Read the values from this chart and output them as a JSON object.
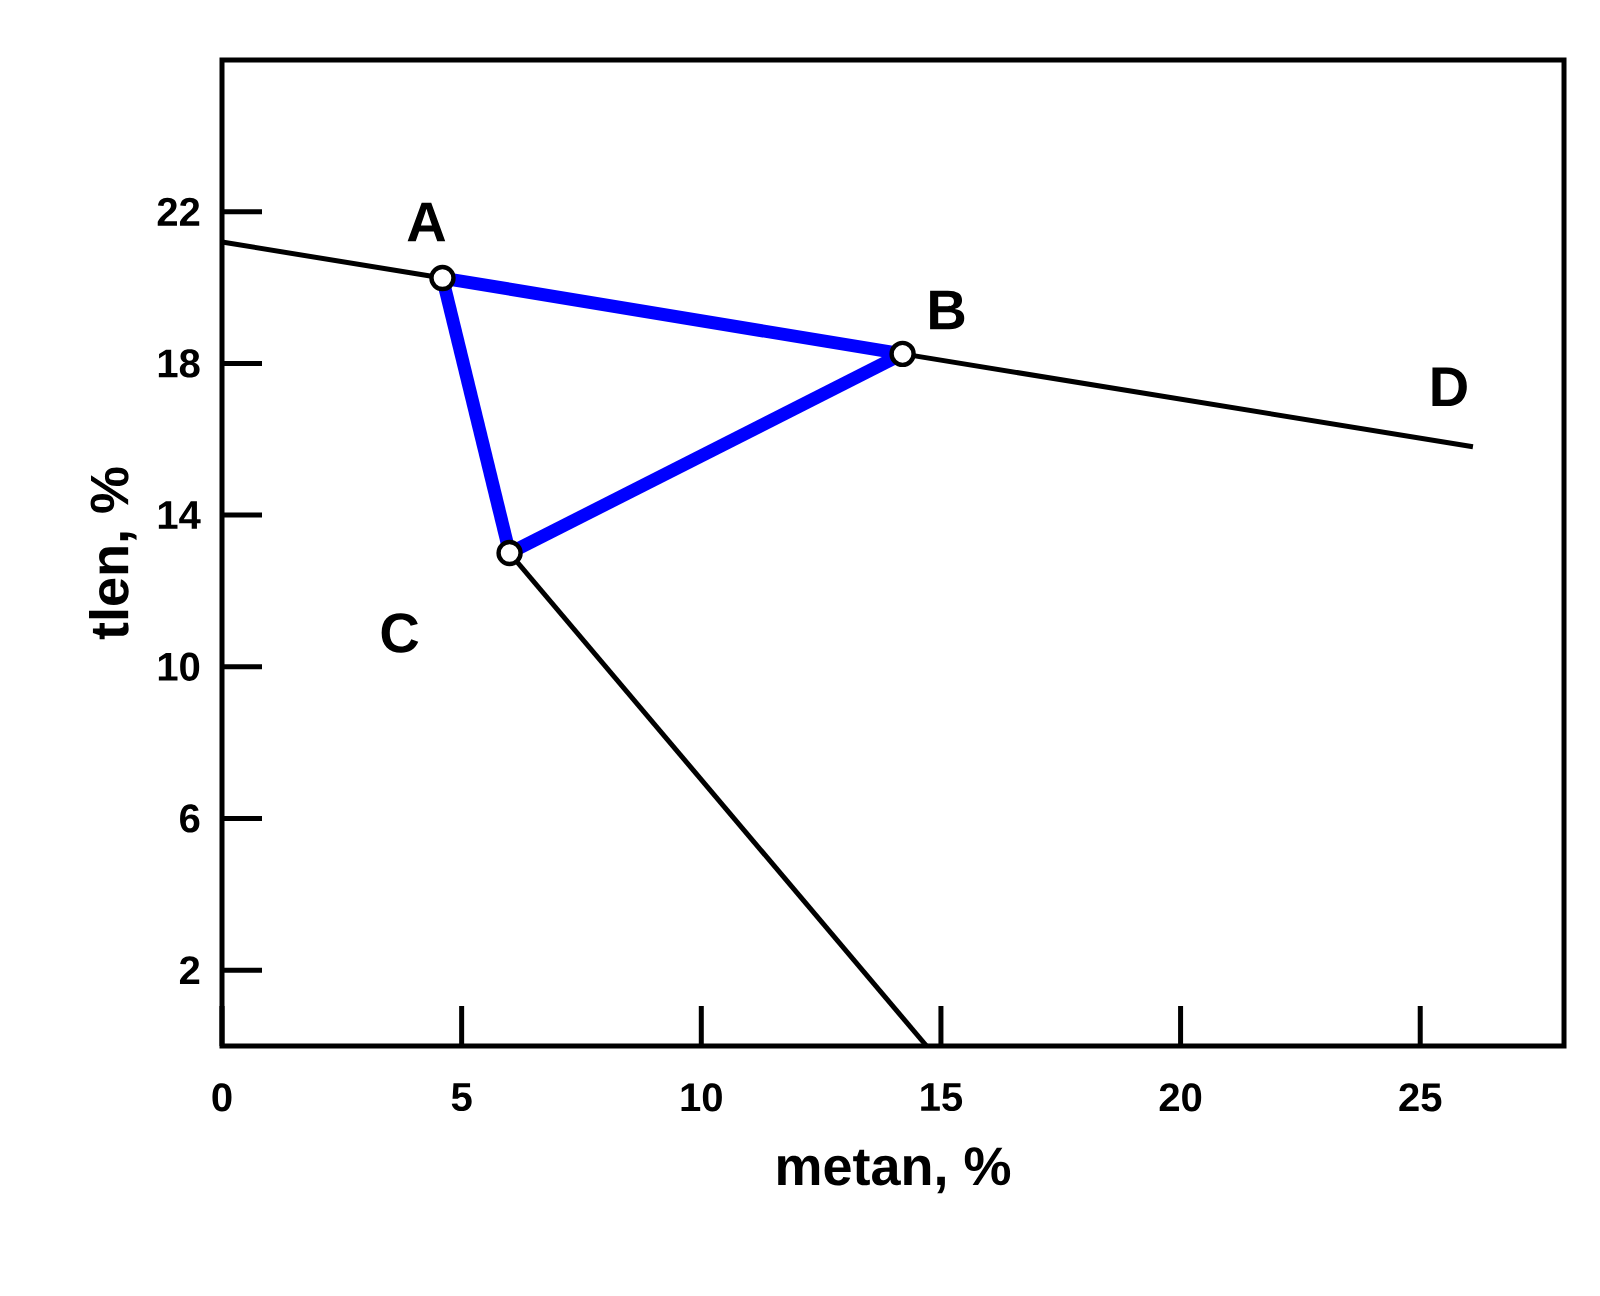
{
  "chart_data": {
    "type": "line",
    "xlabel": "metan, %",
    "ylabel": "tlen, %",
    "xlim": [
      0,
      28
    ],
    "ylim": [
      0,
      26
    ],
    "xticks": [
      0,
      5,
      10,
      15,
      20,
      25
    ],
    "yticks": [
      2,
      6,
      10,
      14,
      18,
      22
    ],
    "grid": false,
    "series": [
      {
        "color": "#000000",
        "x": [
          0,
          4.6,
          14.2,
          26.1
        ],
        "values": [
          21.2,
          20.25,
          18.25,
          15.8
        ]
      },
      {
        "color": "#000000",
        "x": [
          6.0,
          14.7
        ],
        "values": [
          13.0,
          0
        ]
      },
      {
        "color": "#0000ff",
        "x": [
          4.6,
          14.2
        ],
        "values": [
          20.25,
          18.25
        ]
      },
      {
        "color": "#0000ff",
        "x": [
          6.0,
          14.2
        ],
        "values": [
          13.0,
          18.25
        ]
      },
      {
        "color": "#0000ff",
        "x": [
          4.6,
          6.0
        ],
        "values": [
          20.25,
          13.0
        ]
      },
      {
        "type": "scatter",
        "color": "#ffffff",
        "marker": "circle",
        "x": [
          4.6,
          14.2,
          6.0
        ],
        "values": [
          20.25,
          18.25,
          13.0
        ]
      }
    ],
    "annotations": [
      {
        "text": "A",
        "x": 4.6,
        "y": 20.25
      },
      {
        "text": "B",
        "x": 14.2,
        "y": 18.25
      },
      {
        "text": "C",
        "x": 6.0,
        "y": 13.0
      },
      {
        "text": "D",
        "x": 26.1,
        "y": 15.8
      }
    ]
  }
}
